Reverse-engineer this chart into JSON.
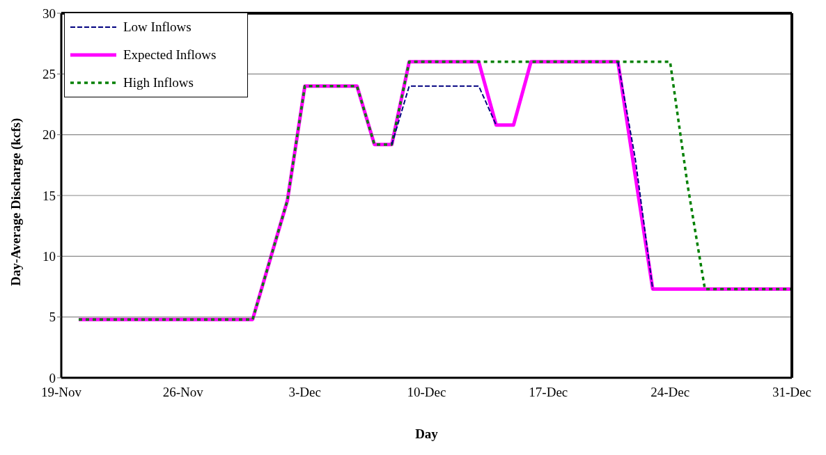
{
  "chart_data": {
    "type": "line",
    "xlabel": "Day",
    "ylabel": "Day-Average Discharge (kcfs)",
    "x": [
      "--11-20",
      "--11-21",
      "--11-22",
      "--11-23",
      "--11-24",
      "--11-25",
      "--11-26",
      "--11-27",
      "--11-28",
      "--11-29",
      "--11-30",
      "--12-01",
      "--12-02",
      "--12-03",
      "--12-04",
      "--12-05",
      "--12-06",
      "--12-07",
      "--12-08",
      "--12-09",
      "--12-10",
      "--12-11",
      "--12-12",
      "--12-13",
      "--12-14",
      "--12-15",
      "--12-16",
      "--12-17",
      "--12-18",
      "--12-19",
      "--12-20",
      "--12-21",
      "--12-22",
      "--12-23",
      "--12-24",
      "--12-25",
      "--12-26",
      "--12-27",
      "--12-28",
      "--12-29",
      "--12-30",
      "--12-31"
    ],
    "series": [
      {
        "name": "Low Inflows",
        "color": "#000080",
        "line_style": "dashed",
        "values": [
          null,
          null,
          null,
          null,
          null,
          null,
          null,
          null,
          null,
          null,
          null,
          null,
          null,
          null,
          null,
          null,
          null,
          null,
          19.2,
          24,
          24,
          24,
          24,
          24,
          20.8,
          null,
          null,
          null,
          null,
          null,
          null,
          26,
          18,
          7.3,
          null,
          null,
          null,
          null,
          null,
          null,
          null,
          null
        ]
      },
      {
        "name": "Expected Inflows",
        "color": "#ff00ff",
        "line_style": "solid",
        "values": [
          4.8,
          4.8,
          4.8,
          4.8,
          4.8,
          4.8,
          4.8,
          4.8,
          4.8,
          4.8,
          4.8,
          9.7,
          14.6,
          24,
          24,
          24,
          24,
          19.2,
          19.2,
          26,
          26,
          26,
          26,
          26,
          20.8,
          20.8,
          26,
          26,
          26,
          26,
          26,
          26,
          16.6,
          7.3,
          7.3,
          7.3,
          7.3,
          7.3,
          7.3,
          7.3,
          7.3,
          7.3
        ]
      },
      {
        "name": "High Inflows",
        "color": "#008000",
        "line_style": "dotted",
        "values": [
          4.8,
          4.8,
          4.8,
          4.8,
          4.8,
          4.8,
          4.8,
          4.8,
          4.8,
          4.8,
          4.8,
          9.7,
          14.6,
          24,
          24,
          24,
          24,
          19.2,
          19.2,
          26,
          26,
          26,
          26,
          26,
          26,
          26,
          26,
          26,
          26,
          26,
          26,
          26,
          26,
          26,
          26,
          15.9,
          7.3,
          7.3,
          7.3,
          7.3,
          7.3,
          7.3
        ]
      }
    ],
    "xlim": [
      "--11-19",
      "--12-31"
    ],
    "xticks": [
      {
        "value": "--11-19",
        "label": "19-Nov"
      },
      {
        "value": "--11-26",
        "label": "26-Nov"
      },
      {
        "value": "--12-03",
        "label": "3-Dec"
      },
      {
        "value": "--12-10",
        "label": "10-Dec"
      },
      {
        "value": "--12-17",
        "label": "17-Dec"
      },
      {
        "value": "--12-24",
        "label": "24-Dec"
      },
      {
        "value": "--12-31",
        "label": "31-Dec"
      }
    ],
    "ylim": [
      0,
      30
    ],
    "yticks": [
      0,
      5,
      10,
      15,
      20,
      25,
      30
    ],
    "grid": "y",
    "legend": "top left",
    "marker": "none"
  }
}
